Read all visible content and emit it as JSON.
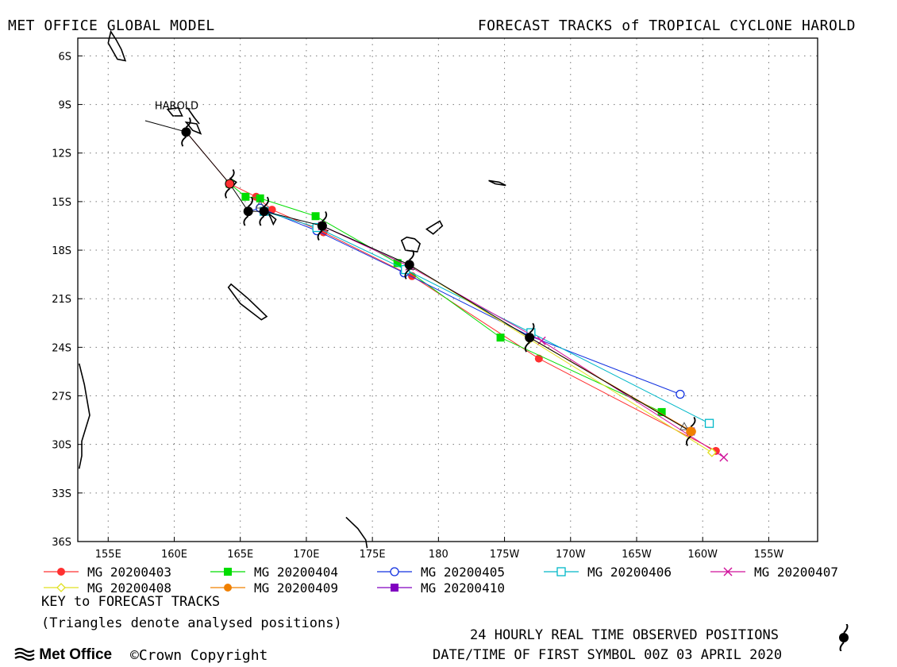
{
  "header": {
    "left": "MET OFFICE GLOBAL MODEL",
    "right": "FORECAST TRACKS of TROPICAL CYCLONE HAROLD"
  },
  "footer": {
    "key_title": "KEY to FORECAST TRACKS",
    "key_note": "(Triangles denote analysed positions)",
    "observed_label": "24 HOURLY REAL TIME OBSERVED POSITIONS",
    "date_label": "DATE/TIME OF FIRST SYMBOL 00Z 03 APRIL 2020",
    "brand": "Met Office",
    "copyright": "Crown Copyright"
  },
  "chart_data": {
    "type": "map-tracks",
    "storm_label": "HAROLD",
    "x_ticks": [
      {
        "lon": 155,
        "label": "155E"
      },
      {
        "lon": 160,
        "label": "160E"
      },
      {
        "lon": 165,
        "label": "165E"
      },
      {
        "lon": 170,
        "label": "170E"
      },
      {
        "lon": 175,
        "label": "175E"
      },
      {
        "lon": 180,
        "label": "180"
      },
      {
        "lon": 185,
        "label": "175W"
      },
      {
        "lon": 190,
        "label": "170W"
      },
      {
        "lon": 195,
        "label": "165W"
      },
      {
        "lon": 200,
        "label": "160W"
      },
      {
        "lon": 205,
        "label": "155W"
      }
    ],
    "y_ticks": [
      {
        "lat": -6,
        "label": "6S"
      },
      {
        "lat": -9,
        "label": "9S"
      },
      {
        "lat": -12,
        "label": "12S"
      },
      {
        "lat": -15,
        "label": "15S"
      },
      {
        "lat": -18,
        "label": "18S"
      },
      {
        "lat": -21,
        "label": "21S"
      },
      {
        "lat": -24,
        "label": "24S"
      },
      {
        "lat": -27,
        "label": "27S"
      },
      {
        "lat": -30,
        "label": "30S"
      },
      {
        "lat": -33,
        "label": "33S"
      },
      {
        "lat": -36,
        "label": "36S"
      }
    ],
    "xlim": [
      152.7,
      208.7
    ],
    "ylim": [
      -36.0,
      -4.9
    ],
    "grid": true,
    "observed_positions": [
      {
        "lon": 160.9,
        "lat": -10.7
      },
      {
        "lon": 164.2,
        "lat": -13.9
      },
      {
        "lon": 165.6,
        "lat": -15.6
      },
      {
        "lon": 166.8,
        "lat": -15.6
      },
      {
        "lon": 171.2,
        "lat": -16.5
      },
      {
        "lon": 177.8,
        "lat": -18.9
      },
      {
        "lon": 186.9,
        "lat": -23.4
      },
      {
        "lon": 199.1,
        "lat": -29.2
      }
    ],
    "observed_path_start": {
      "lon": 157.8,
      "lat": -10.0
    },
    "series": [
      {
        "name": "MG 20200403",
        "color": "#ff3030",
        "marker": "filled-circle",
        "points": [
          [
            160.9,
            -10.7
          ],
          [
            164.2,
            -13.9
          ],
          [
            166.2,
            -14.7
          ],
          [
            167.4,
            -15.5
          ],
          [
            171.3,
            -16.9
          ],
          [
            178.0,
            -19.6
          ],
          [
            187.6,
            -24.7
          ],
          [
            201.0,
            -30.4
          ]
        ]
      },
      {
        "name": "MG 20200404",
        "color": "#00dd00",
        "marker": "filled-square",
        "points": [
          [
            164.2,
            -13.9
          ],
          [
            165.4,
            -14.7
          ],
          [
            166.5,
            -14.8
          ],
          [
            170.7,
            -15.9
          ],
          [
            176.9,
            -18.8
          ],
          [
            184.7,
            -23.4
          ],
          [
            196.9,
            -28.0
          ]
        ]
      },
      {
        "name": "MG 20200405",
        "color": "#1030e0",
        "marker": "open-circle",
        "points": [
          [
            165.6,
            -15.6
          ],
          [
            166.5,
            -15.4
          ],
          [
            170.8,
            -16.8
          ],
          [
            177.4,
            -19.4
          ],
          [
            186.9,
            -23.3
          ],
          [
            198.3,
            -26.9
          ]
        ]
      },
      {
        "name": "MG 20200406",
        "color": "#00b8c8",
        "marker": "open-square",
        "points": [
          [
            166.8,
            -15.6
          ],
          [
            170.8,
            -16.6
          ],
          [
            177.5,
            -19.2
          ],
          [
            187.0,
            -23.1
          ],
          [
            200.5,
            -28.7
          ]
        ]
      },
      {
        "name": "MG 20200407",
        "color": "#d0109a",
        "marker": "cross",
        "points": [
          [
            171.2,
            -16.5
          ],
          [
            177.8,
            -19.0
          ],
          [
            187.8,
            -23.6
          ],
          [
            201.6,
            -30.8
          ]
        ]
      },
      {
        "name": "MG 20200408",
        "color": "#e0e020",
        "marker": "open-diamond",
        "points": [
          [
            177.8,
            -18.9
          ],
          [
            186.9,
            -23.5
          ],
          [
            200.7,
            -30.5
          ]
        ]
      },
      {
        "name": "MG 20200409",
        "color": "#f08000",
        "marker": "filled-circle",
        "points": [
          [
            186.9,
            -23.4
          ],
          [
            199.2,
            -29.2
          ]
        ]
      },
      {
        "name": "MG 20200410",
        "color": "#8000c0",
        "marker": "filled-square",
        "points": [
          [
            199.1,
            -29.2
          ]
        ]
      }
    ],
    "analysed_positions": [
      [
        166.5,
        -15.2
      ],
      [
        177.9,
        -19.0
      ],
      [
        198.6,
        -28.9
      ]
    ]
  }
}
